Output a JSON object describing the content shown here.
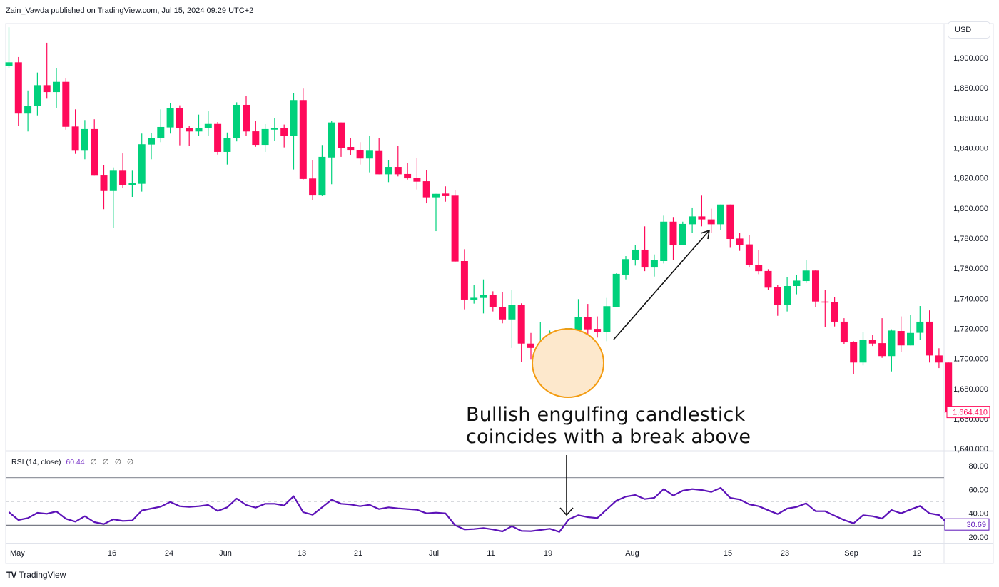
{
  "header": {
    "publish_line": "Zain_Vawda published on TradingView.com, Jul 15, 2024 09:29 UTC+2"
  },
  "currency_button": "USD",
  "footer": {
    "logo_text": "TradingView"
  },
  "annotation": {
    "lines": [
      "Bullish engulfing candlestick",
      "coincides with a break above"
    ]
  },
  "colors": {
    "up": "#00d17c",
    "down": "#ff0a5a",
    "rsi_line": "#5c12b8",
    "highlight_fill": "#fde8cc",
    "highlight_stroke": "#f39c12",
    "last_price": "#ff0a5a"
  },
  "chart_data": [
    {
      "type": "candlestick",
      "fields": [
        "open",
        "high",
        "low",
        "close"
      ],
      "price_axis": {
        "ticks": [
          "1,900.000",
          "1,880.000",
          "1,860.000",
          "1,840.000",
          "1,820.000",
          "1,800.000",
          "1,780.000",
          "1,760.000",
          "1,740.000",
          "1,720.000",
          "1,700.000",
          "1,680.000",
          "1,660.000",
          "1,640.000"
        ],
        "ylim": [
          1640,
          1900
        ],
        "last_price_label": "1,664.410",
        "last_price": 1664.41
      },
      "time_axis": {
        "ticks": [
          "May",
          "16",
          "24",
          "Jun",
          "13",
          "21",
          "Jul",
          "11",
          "19",
          "Aug",
          "15",
          "23",
          "Sep",
          "12"
        ]
      },
      "candles": [
        [
          1894.5,
          1920.3,
          1893.1,
          1897.0
        ],
        [
          1897.0,
          1900.5,
          1854.9,
          1862.9
        ],
        [
          1862.9,
          1878.3,
          1851.0,
          1868.2
        ],
        [
          1868.2,
          1890.2,
          1861.7,
          1881.8
        ],
        [
          1881.8,
          1910.0,
          1872.8,
          1877.2
        ],
        [
          1877.2,
          1892.9,
          1866.8,
          1884.0
        ],
        [
          1884.0,
          1886.2,
          1852.2,
          1854.1
        ],
        [
          1854.3,
          1865.7,
          1836.1,
          1838.2
        ],
        [
          1838.2,
          1858.6,
          1832.5,
          1852.6
        ],
        [
          1852.6,
          1859.1,
          1821.6,
          1821.6
        ],
        [
          1821.7,
          1828.8,
          1799.3,
          1811.4
        ],
        [
          1811.4,
          1827.1,
          1786.9,
          1824.9
        ],
        [
          1824.9,
          1836.4,
          1813.2,
          1815.1
        ],
        [
          1815.1,
          1824.9,
          1807.5,
          1816.5
        ],
        [
          1816.2,
          1849.6,
          1811.0,
          1842.5
        ],
        [
          1842.3,
          1850.1,
          1832.5,
          1846.7
        ],
        [
          1846.5,
          1865.7,
          1843.9,
          1854.0
        ],
        [
          1853.7,
          1870.1,
          1849.6,
          1866.5
        ],
        [
          1866.5,
          1868.4,
          1841.8,
          1853.2
        ],
        [
          1853.4,
          1854.9,
          1841.3,
          1851.0
        ],
        [
          1851.0,
          1862.2,
          1848.3,
          1853.4
        ],
        [
          1853.2,
          1864.4,
          1848.3,
          1856.0
        ],
        [
          1856.0,
          1857.3,
          1835.6,
          1837.4
        ],
        [
          1837.4,
          1850.3,
          1829.0,
          1846.7
        ],
        [
          1846.5,
          1870.4,
          1844.4,
          1868.7
        ],
        [
          1868.7,
          1874.4,
          1848.0,
          1851.0
        ],
        [
          1851.1,
          1858.1,
          1840.8,
          1842.1
        ],
        [
          1842.1,
          1855.9,
          1837.4,
          1852.6
        ],
        [
          1852.2,
          1860.0,
          1844.8,
          1853.5
        ],
        [
          1853.4,
          1855.6,
          1840.4,
          1848.0
        ],
        [
          1848.0,
          1876.3,
          1825.7,
          1871.9
        ],
        [
          1871.9,
          1879.5,
          1819.0,
          1819.4
        ],
        [
          1819.7,
          1832.0,
          1805.3,
          1808.4
        ],
        [
          1808.4,
          1842.0,
          1808.0,
          1834.1
        ],
        [
          1833.7,
          1857.8,
          1815.9,
          1857.0
        ],
        [
          1857.0,
          1857.0,
          1834.1,
          1840.2
        ],
        [
          1840.7,
          1846.4,
          1835.1,
          1838.3
        ],
        [
          1838.5,
          1843.9,
          1829.0,
          1833.0
        ],
        [
          1833.0,
          1848.3,
          1823.8,
          1838.2
        ],
        [
          1838.0,
          1846.4,
          1822.5,
          1822.5
        ],
        [
          1822.5,
          1832.0,
          1817.3,
          1827.4
        ],
        [
          1827.4,
          1841.2,
          1821.1,
          1822.5
        ],
        [
          1822.7,
          1829.8,
          1819.0,
          1819.8
        ],
        [
          1820.2,
          1833.3,
          1812.4,
          1817.6
        ],
        [
          1817.9,
          1825.5,
          1803.2,
          1807.2
        ],
        [
          1807.2,
          1809.5,
          1784.7,
          1809.5
        ],
        [
          1809.7,
          1814.5,
          1804.3,
          1808.0
        ],
        [
          1808.3,
          1812.2,
          1764.3,
          1764.5
        ],
        [
          1764.8,
          1772.7,
          1732.7,
          1739.2
        ],
        [
          1739.2,
          1749.0,
          1736.5,
          1740.4
        ],
        [
          1740.3,
          1752.6,
          1730.0,
          1742.4
        ],
        [
          1742.4,
          1744.7,
          1731.3,
          1734.0
        ],
        [
          1734.1,
          1744.2,
          1723.4,
          1726.0
        ],
        [
          1726.0,
          1745.8,
          1707.0,
          1735.5
        ],
        [
          1735.5,
          1736.7,
          1697.6,
          1709.9
        ],
        [
          1709.9,
          1717.0,
          1699.2,
          1707.0
        ],
        [
          1707.1,
          1724.1,
          1706.0,
          1709.2
        ],
        [
          1708.8,
          1718.6,
          1705.2,
          1711.5
        ],
        [
          1711.5,
          1714.4,
          1692.5,
          1696.8
        ],
        [
          1696.8,
          1720.2,
          1681.0,
          1720.2
        ],
        [
          1719.0,
          1739.5,
          1713.4,
          1727.7
        ],
        [
          1727.7,
          1736.3,
          1715.1,
          1719.4
        ],
        [
          1719.7,
          1728.0,
          1713.9,
          1717.4
        ],
        [
          1717.4,
          1740.3,
          1711.5,
          1734.8
        ],
        [
          1734.4,
          1756.6,
          1734.4,
          1756.3
        ],
        [
          1755.8,
          1768.1,
          1752.6,
          1766.1
        ],
        [
          1765.7,
          1775.6,
          1761.8,
          1772.4
        ],
        [
          1772.4,
          1787.9,
          1758.1,
          1760.5
        ],
        [
          1760.5,
          1769.2,
          1754.5,
          1765.3
        ],
        [
          1764.8,
          1795.0,
          1763.2,
          1791.0
        ],
        [
          1791.0,
          1794.1,
          1765.6,
          1775.5
        ],
        [
          1775.5,
          1791.0,
          1775.5,
          1789.5
        ],
        [
          1789.3,
          1800.4,
          1783.4,
          1794.5
        ],
        [
          1794.5,
          1808.3,
          1787.9,
          1792.5
        ],
        [
          1792.5,
          1799.6,
          1783.4,
          1789.3
        ],
        [
          1789.3,
          1802.4,
          1785.3,
          1802.4
        ],
        [
          1802.4,
          1802.4,
          1773.6,
          1779.5
        ],
        [
          1779.8,
          1783.4,
          1771.6,
          1775.7
        ],
        [
          1775.9,
          1782.2,
          1760.5,
          1762.1
        ],
        [
          1762.4,
          1772.4,
          1756.1,
          1758.1
        ],
        [
          1758.2,
          1759.4,
          1745.8,
          1747.1
        ],
        [
          1747.4,
          1749.0,
          1728.4,
          1735.7
        ],
        [
          1735.7,
          1754.2,
          1731.3,
          1748.2
        ],
        [
          1748.2,
          1755.8,
          1742.7,
          1751.8
        ],
        [
          1751.5,
          1765.6,
          1750.2,
          1758.5
        ],
        [
          1758.5,
          1759.0,
          1734.4,
          1737.9
        ],
        [
          1737.9,
          1745.5,
          1721.0,
          1737.6
        ],
        [
          1737.6,
          1740.8,
          1721.3,
          1724.5
        ],
        [
          1724.5,
          1726.8,
          1709.6,
          1710.7
        ],
        [
          1711.0,
          1711.5,
          1689.4,
          1697.3
        ],
        [
          1697.3,
          1717.8,
          1695.4,
          1712.6
        ],
        [
          1712.6,
          1715.8,
          1708.3,
          1709.9
        ],
        [
          1710.2,
          1726.8,
          1700.4,
          1701.6
        ],
        [
          1701.6,
          1719.4,
          1691.4,
          1718.6
        ],
        [
          1718.3,
          1728.0,
          1704.4,
          1708.7
        ],
        [
          1708.7,
          1729.2,
          1708.7,
          1717.0
        ],
        [
          1717.1,
          1734.9,
          1712.3,
          1724.5
        ],
        [
          1724.5,
          1732.0,
          1697.3,
          1702.0
        ],
        [
          1702.0,
          1706.8,
          1693.6,
          1697.3
        ],
        [
          1697.3,
          1697.3,
          1664.41,
          1664.41
        ]
      ]
    },
    {
      "type": "line",
      "indicator": {
        "name": "RSI (14, close)",
        "value": "60.44",
        "extra_values": [
          "∅",
          "∅",
          "∅",
          "∅"
        ]
      },
      "ticks": [
        "80.00",
        "60.00",
        "40.00",
        "20.00"
      ],
      "ylim": [
        13,
        92
      ],
      "levels": {
        "upper": 70,
        "middle": 50,
        "lower": 30
      },
      "last_value_label": "30.69",
      "values": [
        41,
        34.4,
        36,
        40.4,
        39.6,
        41.6,
        35.4,
        33,
        37.6,
        32.6,
        31,
        35,
        33.6,
        34,
        42.4,
        44,
        45.6,
        49.6,
        46,
        45.4,
        46,
        47,
        42,
        45,
        52.4,
        47,
        44.8,
        48,
        48,
        46.6,
        54.4,
        41,
        38.8,
        45,
        51.4,
        48,
        47.4,
        46,
        47.2,
        43.6,
        45,
        44.2,
        43.6,
        43,
        40,
        40.6,
        40,
        30,
        26.4,
        26.8,
        27.6,
        26.4,
        24.8,
        29.2,
        25.2,
        25,
        26,
        27,
        24.4,
        35,
        38.4,
        36.8,
        36,
        43.4,
        50.6,
        54,
        55.4,
        52,
        53,
        60.4,
        55,
        59,
        60.4,
        59.6,
        58,
        61.4,
        53,
        51.6,
        47.6,
        46,
        42.6,
        39.4,
        44,
        45.4,
        48.4,
        41.8,
        41.8,
        38,
        34.4,
        31.6,
        38.4,
        37.6,
        35.6,
        42.8,
        40,
        43.2,
        46.2,
        40,
        38.6,
        30.69
      ]
    }
  ]
}
